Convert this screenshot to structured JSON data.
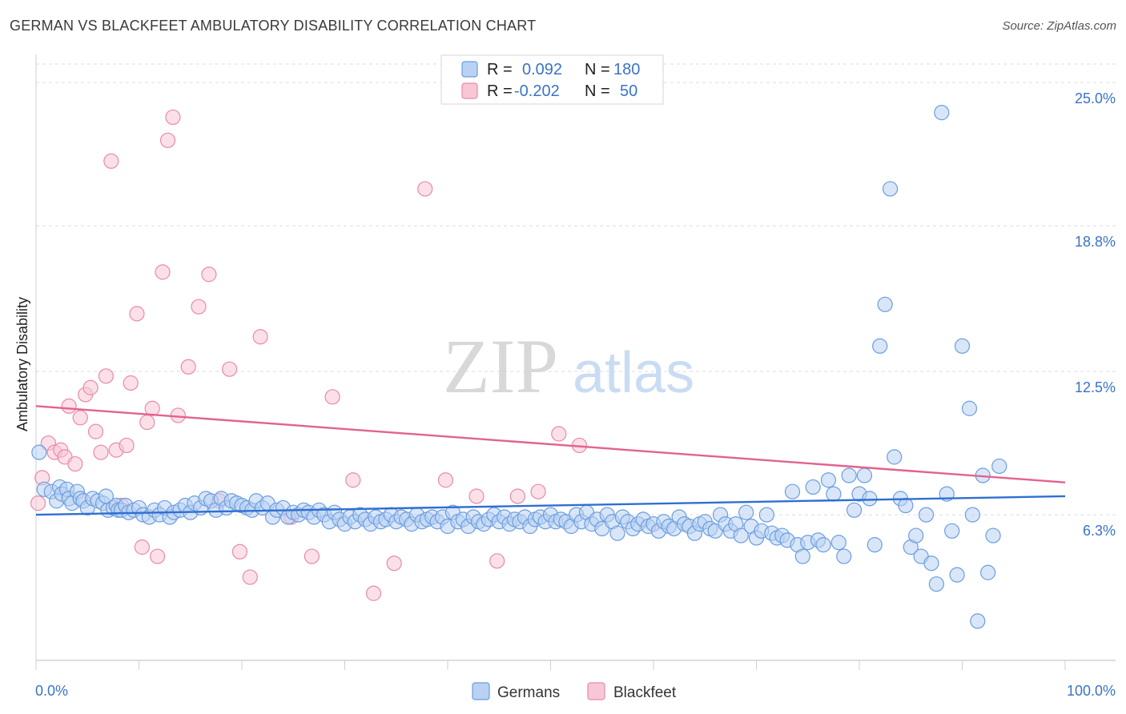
{
  "title": "GERMAN VS BLACKFEET AMBULATORY DISABILITY CORRELATION CHART",
  "source": "Source: ZipAtlas.com",
  "watermark": {
    "zip": "ZIP",
    "atlas": "atlas"
  },
  "chart_data": {
    "type": "scatter",
    "title": "GERMAN VS BLACKFEET AMBULATORY DISABILITY CORRELATION CHART",
    "xlabel": "",
    "ylabel": "Ambulatory Disability",
    "xlim": [
      0,
      100
    ],
    "ylim": [
      0,
      25.8
    ],
    "x_tick_labels": {
      "left": "0.0%",
      "right": "100.0%"
    },
    "y_ticks": [
      {
        "value": 6.3,
        "label": "6.3%"
      },
      {
        "value": 12.5,
        "label": "12.5%"
      },
      {
        "value": 18.8,
        "label": "18.8%"
      },
      {
        "value": 25.0,
        "label": "25.0%"
      }
    ],
    "grid": true,
    "legend_position": "top-center",
    "legend": [
      {
        "name": "Germans",
        "r_label": "R =",
        "r_value": "0.092",
        "n_label": "N =",
        "n_value": "180",
        "color": "#6a9de0",
        "fill": "#b9d1f3"
      },
      {
        "name": "Blackfeet",
        "r_label": "R =",
        "r_value": "-0.202",
        "n_label": "N =",
        "n_value": "50",
        "color": "#e98aa8",
        "fill": "#f7c7d6"
      }
    ],
    "series": [
      {
        "name": "Germans",
        "color": "#6a9de0",
        "trend": {
          "x": [
            0,
            100
          ],
          "y": [
            6.3,
            7.1
          ]
        },
        "points": [
          [
            0.3,
            9.0
          ],
          [
            0.8,
            7.4
          ],
          [
            1.5,
            7.3
          ],
          [
            2,
            6.9
          ],
          [
            2.3,
            7.5
          ],
          [
            2.5,
            7.2
          ],
          [
            3,
            7.4
          ],
          [
            3.2,
            7.0
          ],
          [
            3.5,
            6.8
          ],
          [
            4,
            7.3
          ],
          [
            4.3,
            7.0
          ],
          [
            4.6,
            6.9
          ],
          [
            5,
            6.6
          ],
          [
            5.5,
            7.0
          ],
          [
            6,
            6.9
          ],
          [
            6.5,
            6.8
          ],
          [
            6.8,
            7.1
          ],
          [
            7,
            6.5
          ],
          [
            7.5,
            6.6
          ],
          [
            7.8,
            6.7
          ],
          [
            8,
            6.5
          ],
          [
            8.3,
            6.5
          ],
          [
            8.7,
            6.7
          ],
          [
            9,
            6.4
          ],
          [
            9.5,
            6.5
          ],
          [
            10,
            6.6
          ],
          [
            10.4,
            6.3
          ],
          [
            11,
            6.2
          ],
          [
            11.5,
            6.5
          ],
          [
            12,
            6.3
          ],
          [
            12.5,
            6.6
          ],
          [
            13,
            6.2
          ],
          [
            13.4,
            6.4
          ],
          [
            14,
            6.5
          ],
          [
            14.5,
            6.7
          ],
          [
            15,
            6.4
          ],
          [
            15.4,
            6.8
          ],
          [
            16,
            6.6
          ],
          [
            16.5,
            7.0
          ],
          [
            17,
            6.9
          ],
          [
            17.5,
            6.5
          ],
          [
            18,
            7.0
          ],
          [
            18.5,
            6.6
          ],
          [
            19,
            6.9
          ],
          [
            19.5,
            6.8
          ],
          [
            20,
            6.7
          ],
          [
            20.5,
            6.6
          ],
          [
            21,
            6.5
          ],
          [
            21.4,
            6.9
          ],
          [
            22,
            6.6
          ],
          [
            22.5,
            6.8
          ],
          [
            23,
            6.2
          ],
          [
            23.4,
            6.5
          ],
          [
            24,
            6.6
          ],
          [
            24.5,
            6.2
          ],
          [
            25,
            6.4
          ],
          [
            25.5,
            6.3
          ],
          [
            26,
            6.5
          ],
          [
            26.5,
            6.4
          ],
          [
            27,
            6.2
          ],
          [
            27.5,
            6.5
          ],
          [
            28,
            6.3
          ],
          [
            28.5,
            6.0
          ],
          [
            29,
            6.4
          ],
          [
            29.5,
            6.1
          ],
          [
            30,
            5.9
          ],
          [
            30.5,
            6.2
          ],
          [
            31,
            6.0
          ],
          [
            31.5,
            6.3
          ],
          [
            32,
            6.1
          ],
          [
            32.5,
            5.9
          ],
          [
            33,
            6.2
          ],
          [
            33.5,
            6.0
          ],
          [
            34,
            6.1
          ],
          [
            34.5,
            6.3
          ],
          [
            35,
            6.0
          ],
          [
            35.5,
            6.2
          ],
          [
            36,
            6.1
          ],
          [
            36.5,
            5.9
          ],
          [
            37,
            6.3
          ],
          [
            37.5,
            6.0
          ],
          [
            38,
            6.1
          ],
          [
            38.5,
            6.2
          ],
          [
            39,
            6.0
          ],
          [
            39.5,
            6.2
          ],
          [
            40,
            5.8
          ],
          [
            40.5,
            6.4
          ],
          [
            41,
            6.0
          ],
          [
            41.5,
            6.1
          ],
          [
            42,
            5.8
          ],
          [
            42.5,
            6.2
          ],
          [
            43,
            6.0
          ],
          [
            43.5,
            5.9
          ],
          [
            44,
            6.1
          ],
          [
            44.5,
            6.3
          ],
          [
            45,
            6.0
          ],
          [
            45.5,
            6.2
          ],
          [
            46,
            5.9
          ],
          [
            46.5,
            6.1
          ],
          [
            47,
            6.0
          ],
          [
            47.5,
            6.2
          ],
          [
            48,
            5.8
          ],
          [
            48.5,
            6.1
          ],
          [
            49,
            6.2
          ],
          [
            49.5,
            6.0
          ],
          [
            50,
            6.3
          ],
          [
            50.5,
            6.0
          ],
          [
            51,
            6.1
          ],
          [
            51.5,
            6.0
          ],
          [
            52,
            5.8
          ],
          [
            52.5,
            6.3
          ],
          [
            53,
            6.0
          ],
          [
            53.5,
            6.4
          ],
          [
            54,
            5.9
          ],
          [
            54.5,
            6.1
          ],
          [
            55,
            5.7
          ],
          [
            55.5,
            6.3
          ],
          [
            56,
            6.0
          ],
          [
            56.5,
            5.5
          ],
          [
            57,
            6.2
          ],
          [
            57.5,
            6.0
          ],
          [
            58,
            5.7
          ],
          [
            58.5,
            5.9
          ],
          [
            59,
            6.1
          ],
          [
            59.5,
            5.8
          ],
          [
            60,
            5.9
          ],
          [
            60.5,
            5.6
          ],
          [
            61,
            6.0
          ],
          [
            61.5,
            5.8
          ],
          [
            62,
            5.7
          ],
          [
            62.5,
            6.2
          ],
          [
            63,
            5.9
          ],
          [
            63.5,
            5.8
          ],
          [
            64,
            5.5
          ],
          [
            64.5,
            5.9
          ],
          [
            65,
            6.0
          ],
          [
            65.5,
            5.7
          ],
          [
            66,
            5.6
          ],
          [
            66.5,
            6.3
          ],
          [
            67,
            5.9
          ],
          [
            67.5,
            5.6
          ],
          [
            68,
            5.9
          ],
          [
            68.5,
            5.4
          ],
          [
            69,
            6.4
          ],
          [
            69.5,
            5.8
          ],
          [
            70,
            5.3
          ],
          [
            70.5,
            5.6
          ],
          [
            71,
            6.3
          ],
          [
            71.5,
            5.5
          ],
          [
            72,
            5.3
          ],
          [
            72.5,
            5.4
          ],
          [
            73,
            5.2
          ],
          [
            73.5,
            7.3
          ],
          [
            74,
            5.0
          ],
          [
            74.5,
            4.5
          ],
          [
            75,
            5.1
          ],
          [
            75.5,
            7.5
          ],
          [
            76,
            5.2
          ],
          [
            76.5,
            5.0
          ],
          [
            77,
            7.8
          ],
          [
            77.5,
            7.2
          ],
          [
            78,
            5.1
          ],
          [
            78.5,
            4.5
          ],
          [
            79,
            8.0
          ],
          [
            79.5,
            6.5
          ],
          [
            80,
            7.2
          ],
          [
            80.5,
            8.0
          ],
          [
            81,
            7.0
          ],
          [
            81.5,
            5.0
          ],
          [
            82,
            13.6
          ],
          [
            82.5,
            15.4
          ],
          [
            83,
            20.4
          ],
          [
            83.4,
            8.8
          ],
          [
            84,
            7.0
          ],
          [
            84.5,
            6.7
          ],
          [
            85,
            4.9
          ],
          [
            85.5,
            5.4
          ],
          [
            86,
            4.5
          ],
          [
            86.5,
            6.3
          ],
          [
            87,
            4.2
          ],
          [
            87.5,
            3.3
          ],
          [
            88,
            23.7
          ],
          [
            88.5,
            7.2
          ],
          [
            89,
            5.6
          ],
          [
            89.5,
            3.7
          ],
          [
            90,
            13.6
          ],
          [
            90.7,
            10.9
          ],
          [
            91,
            6.3
          ],
          [
            91.5,
            1.7
          ],
          [
            92,
            8.0
          ],
          [
            92.5,
            3.8
          ],
          [
            93,
            5.4
          ],
          [
            93.6,
            8.4
          ]
        ]
      },
      {
        "name": "Blackfeet",
        "color": "#e98aa8",
        "trend": {
          "x": [
            0,
            100
          ],
          "y": [
            11.0,
            7.7
          ]
        },
        "points": [
          [
            0.2,
            6.8
          ],
          [
            0.6,
            7.9
          ],
          [
            1.2,
            9.4
          ],
          [
            1.8,
            9.0
          ],
          [
            2.4,
            9.1
          ],
          [
            2.8,
            8.8
          ],
          [
            3.2,
            11.0
          ],
          [
            3.8,
            8.5
          ],
          [
            4.3,
            10.5
          ],
          [
            4.8,
            11.5
          ],
          [
            5.3,
            11.8
          ],
          [
            5.8,
            9.9
          ],
          [
            6.3,
            9.0
          ],
          [
            6.8,
            12.3
          ],
          [
            7.3,
            21.6
          ],
          [
            7.8,
            9.1
          ],
          [
            8.3,
            6.7
          ],
          [
            8.8,
            9.3
          ],
          [
            9.2,
            12.0
          ],
          [
            9.8,
            15.0
          ],
          [
            10.3,
            4.9
          ],
          [
            10.8,
            10.3
          ],
          [
            11.3,
            10.9
          ],
          [
            11.8,
            4.5
          ],
          [
            12.3,
            16.8
          ],
          [
            12.8,
            22.5
          ],
          [
            13.3,
            23.5
          ],
          [
            13.8,
            10.6
          ],
          [
            14.8,
            12.7
          ],
          [
            15.8,
            15.3
          ],
          [
            16.8,
            16.7
          ],
          [
            17.8,
            6.9
          ],
          [
            18.8,
            12.6
          ],
          [
            19.8,
            4.7
          ],
          [
            20.8,
            3.6
          ],
          [
            21.8,
            14.0
          ],
          [
            24.8,
            6.2
          ],
          [
            26.8,
            4.5
          ],
          [
            28.8,
            11.4
          ],
          [
            30.8,
            7.8
          ],
          [
            32.8,
            2.9
          ],
          [
            34.8,
            4.2
          ],
          [
            37.8,
            20.4
          ],
          [
            39.8,
            7.8
          ],
          [
            42.8,
            7.1
          ],
          [
            44.8,
            4.3
          ],
          [
            46.8,
            7.1
          ],
          [
            48.8,
            7.3
          ],
          [
            50.8,
            9.8
          ],
          [
            52.8,
            9.3
          ]
        ]
      }
    ]
  }
}
